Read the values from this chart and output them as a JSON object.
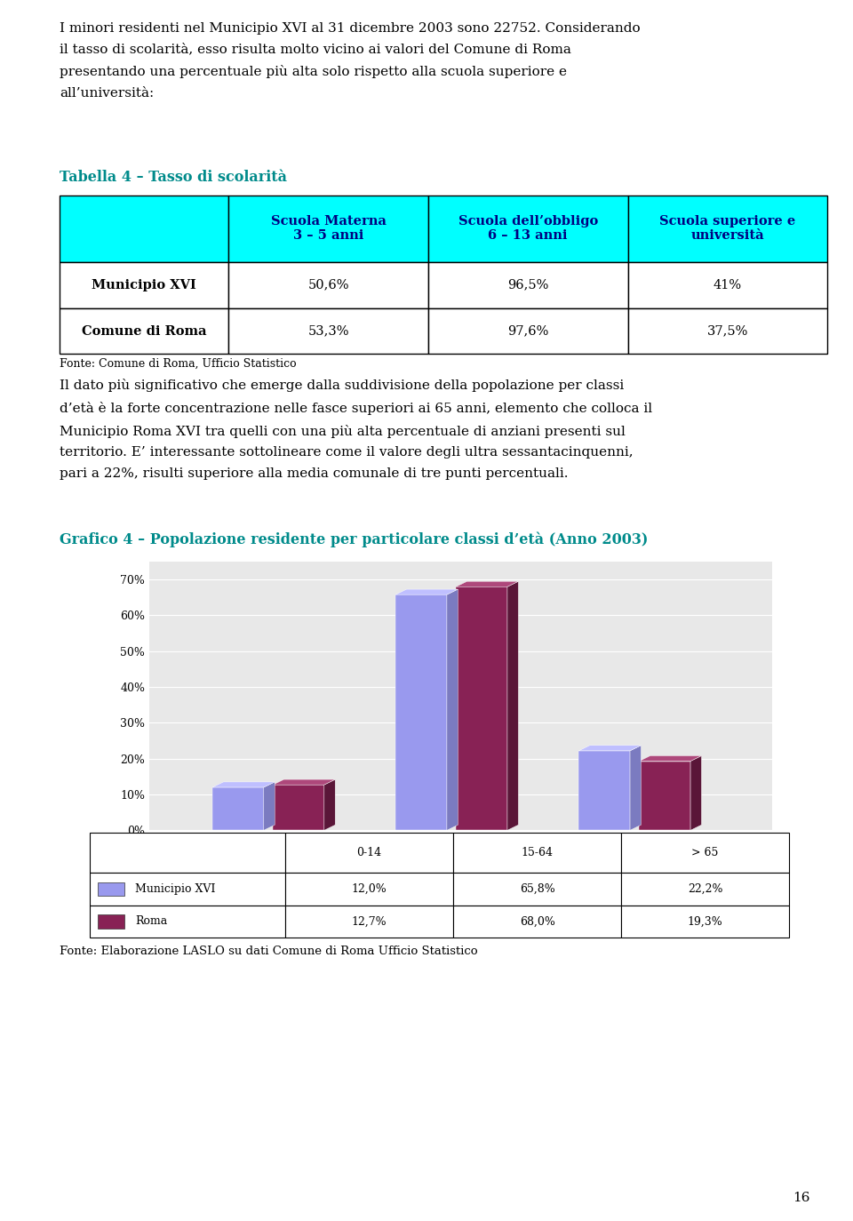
{
  "page_width": 9.6,
  "page_height": 13.74,
  "bg_color": "#ffffff",
  "text_color": "#000000",
  "teal_color": "#008B8B",
  "para1_line1": "I minori residenti nel Municipio XVI al 31 dicembre 2003 sono 22752. Considerando",
  "para1_line2": "il tasso di scolarità, esso risulta molto vicino ai valori del Comune di Roma",
  "para1_line3": "presentando una percentuale più alta solo rispetto alla scuola superiore e",
  "para1_line4": "all’università:",
  "table_title": "Tabella 4 – Tasso di scolarità",
  "table_header_bg": "#00ffff",
  "table_header_color": "#000080",
  "table_col0": "",
  "table_col1": "Scuola Materna\n3 – 5 anni",
  "table_col2": "Scuola dell’obbligo\n6 – 13 anni",
  "table_col3": "Scuola superiore e\nuniversità",
  "table_row1_col0": "Municipio XVI",
  "table_row1_col1": "50,6%",
  "table_row1_col2": "96,5%",
  "table_row1_col3": "41%",
  "table_row2_col0": "Comune di Roma",
  "table_row2_col1": "53,3%",
  "table_row2_col2": "97,6%",
  "table_row2_col3": "37,5%",
  "table_source": "Fonte: Comune di Roma, Ufficio Statistico",
  "para2_line1": "Il dato più significativo che emerge dalla suddivisione della popolazione per classi",
  "para2_line2": "d’età è la forte concentrazione nelle fasce superiori ai 65 anni, elemento che colloca il",
  "para2_line3": "Municipio Roma XVI tra quelli con una più alta percentuale di anziani presenti sul",
  "para2_line4": "territorio. E’ interessante sottolineare come il valore degli ultra sessantacinquenni,",
  "para2_line5": "pari a 22%, risulti superiore alla media comunale di tre punti percentuali.",
  "chart_title": "Grafico 4 – Popolazione residente per particolare classi d’età (Anno 2003)",
  "chart_categories": [
    "0-14",
    "15-64",
    "> 65"
  ],
  "municipio_values": [
    12.0,
    65.8,
    22.2
  ],
  "roma_values": [
    12.7,
    68.0,
    19.3
  ],
  "municipio_label": "Municipio XVI",
  "roma_label": "Roma",
  "municipio_color": "#9999ee",
  "roma_color": "#882255",
  "chart_source": "Fonte: Elaborazione LASLO su dati Comune di Roma Ufficio Statistico",
  "ylim": [
    0,
    75
  ],
  "yticks": [
    0,
    10,
    20,
    30,
    40,
    50,
    60,
    70
  ],
  "ytick_labels": [
    "0%",
    "10%",
    "20%",
    "30%",
    "40%",
    "50%",
    "60%",
    "70%"
  ],
  "leg_cat0": "",
  "leg_cat1": "0-14",
  "leg_cat2": "15-64",
  "leg_cat3": "> 65",
  "leg_row1_label": "Municipio XVI",
  "leg_row1_v1": "12,0%",
  "leg_row1_v2": "65,8%",
  "leg_row1_v3": "22,2%",
  "leg_row2_label": "Roma",
  "leg_row2_v1": "12,7%",
  "leg_row2_v2": "68,0%",
  "leg_row2_v3": "19,3%",
  "page_number": "16"
}
